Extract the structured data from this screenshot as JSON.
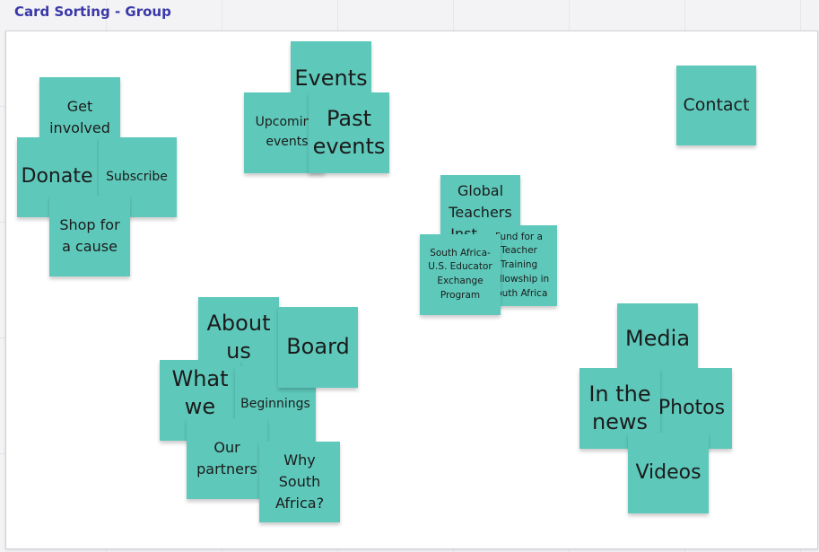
{
  "frame": {
    "title": "Card Sorting - Group"
  },
  "notes": {
    "get_involved": "Get involved",
    "donate": "Donate",
    "subscribe": "Subscribe",
    "shop_for_a_cause": "Shop for a cause",
    "events": "Events",
    "upcoming_events": "Upcoming events",
    "past_events": "Past events",
    "contact": "Contact",
    "global_teachers_institute": "Global Teachers Institute",
    "fund_for_a_teacher_training": "Fund for a Teacher Training Fellowship in South Africa",
    "south_africa_exchange": "South Africa-U.S. Educator Exchange Program",
    "about_us": "About us",
    "board": "Board",
    "what_we_do": "What we do",
    "beginnings": "Beginnings",
    "our_partners": "Our partners",
    "why_south_africa": "Why South Africa?",
    "media": "Media",
    "in_the_news": "In the news",
    "photos": "Photos",
    "videos": "Videos"
  }
}
